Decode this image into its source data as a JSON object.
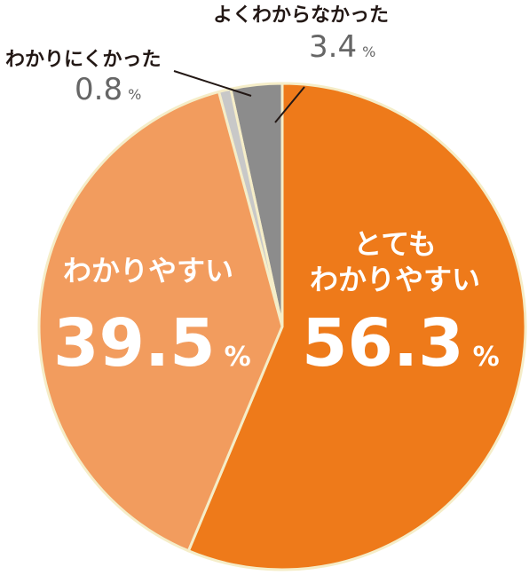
{
  "chart_data": {
    "type": "pie",
    "unit": "%",
    "slices": [
      {
        "name": "とても\nわかりやすい",
        "value": 56.3,
        "color": "#ee7a1a"
      },
      {
        "name": "わかりやすい",
        "value": 39.5,
        "color": "#f29c5e"
      },
      {
        "name": "わかりにくかった",
        "value": 0.8,
        "color": "#c8c8c8"
      },
      {
        "name": "よくわからなかった",
        "value": 3.4,
        "color": "#8c8c8c"
      }
    ],
    "border_color": "#f5edc8",
    "value_texts": [
      "56.3",
      "39.5",
      "0.8",
      "3.4"
    ]
  }
}
